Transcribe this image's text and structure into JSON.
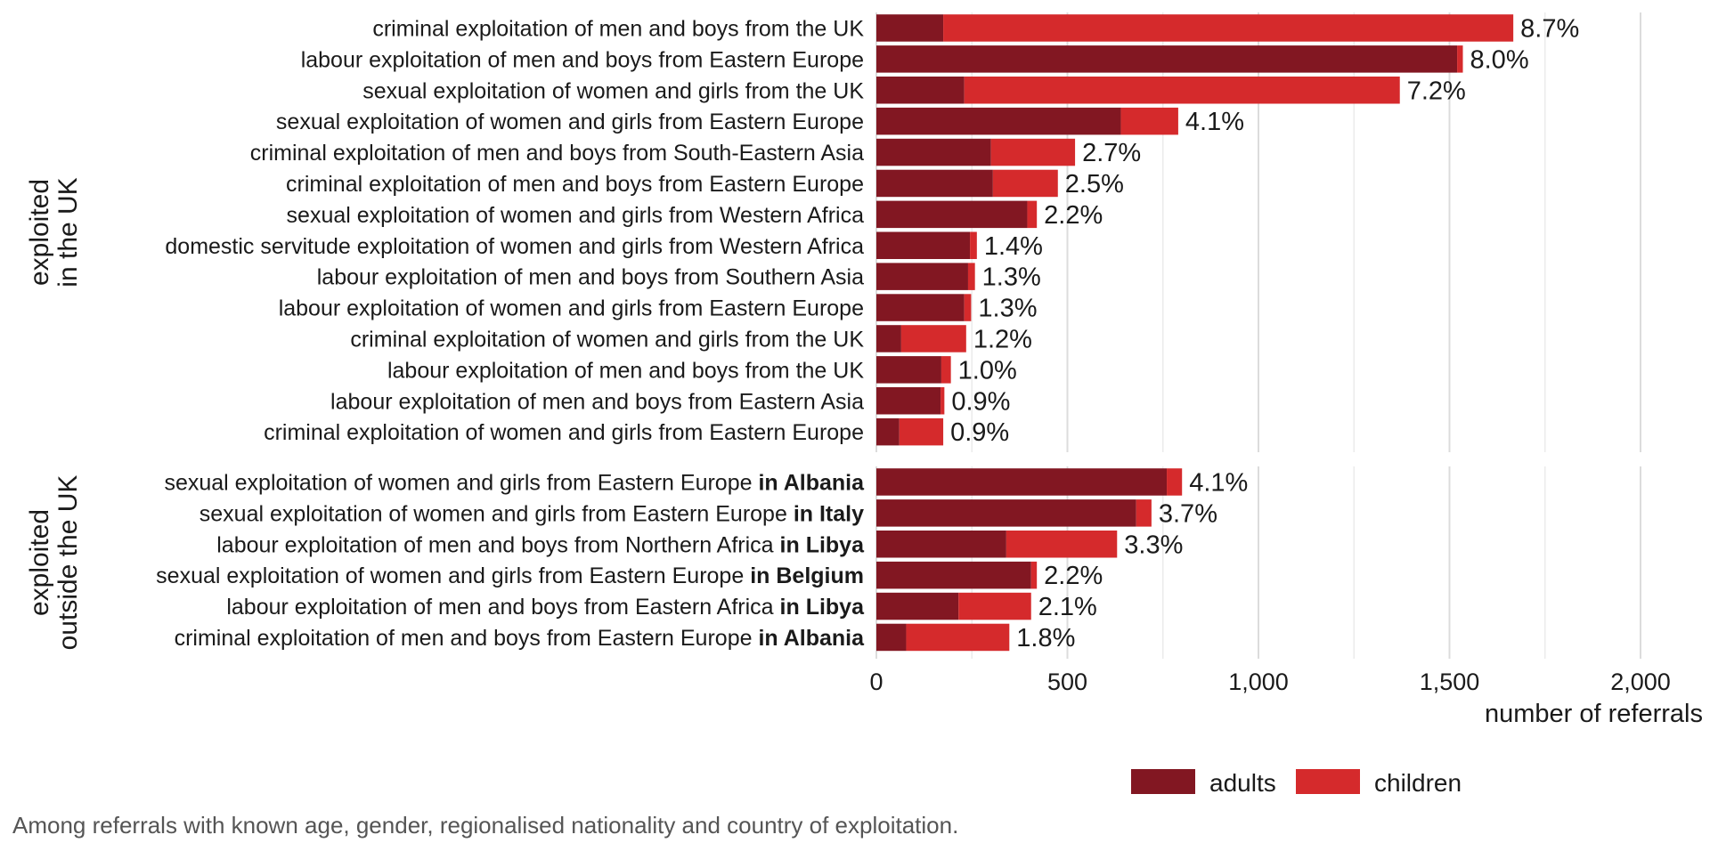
{
  "chart_data": {
    "type": "bar",
    "orientation": "horizontal",
    "stacked": true,
    "xlabel": "number of referrals",
    "xlim": [
      0,
      2000
    ],
    "xticks": [
      0,
      500,
      1000,
      1500,
      2000
    ],
    "xtick_labels": [
      "0",
      "500",
      "1,000",
      "1,500",
      "2,000"
    ],
    "grid": true,
    "legend_position": "bottom-right",
    "series": [
      {
        "name": "adults",
        "color": "#821722"
      },
      {
        "name": "children",
        "color": "#d52a2c"
      }
    ],
    "panels": [
      {
        "title": "exploited\nin the UK",
        "rows": [
          {
            "label": "criminal exploitation of men and boys from the UK",
            "bold": "",
            "adults": 175,
            "children": 1492,
            "pct": "8.7%"
          },
          {
            "label": "labour exploitation of men and boys from Eastern Europe",
            "bold": "",
            "adults": 1520,
            "children": 15,
            "pct": "8.0%"
          },
          {
            "label": "sexual exploitation of women and girls from the UK",
            "bold": "",
            "adults": 230,
            "children": 1140,
            "pct": "7.2%"
          },
          {
            "label": "sexual exploitation of women and girls from Eastern Europe",
            "bold": "",
            "adults": 640,
            "children": 150,
            "pct": "4.1%"
          },
          {
            "label": "criminal exploitation of men and boys from South-Eastern Asia",
            "bold": "",
            "adults": 300,
            "children": 220,
            "pct": "2.7%"
          },
          {
            "label": "criminal exploitation of men and boys from Eastern Europe",
            "bold": "",
            "adults": 305,
            "children": 170,
            "pct": "2.5%"
          },
          {
            "label": "sexual exploitation of women and girls from Western Africa",
            "bold": "",
            "adults": 395,
            "children": 25,
            "pct": "2.2%"
          },
          {
            "label": "domestic servitude exploitation of women and girls from Western Africa",
            "bold": "",
            "adults": 245,
            "children": 18,
            "pct": "1.4%"
          },
          {
            "label": "labour exploitation of men and boys from Southern Asia",
            "bold": "",
            "adults": 240,
            "children": 18,
            "pct": "1.3%"
          },
          {
            "label": "labour exploitation of women and girls from Eastern Europe",
            "bold": "",
            "adults": 230,
            "children": 18,
            "pct": "1.3%"
          },
          {
            "label": "criminal exploitation of women and girls from the UK",
            "bold": "",
            "adults": 65,
            "children": 170,
            "pct": "1.2%"
          },
          {
            "label": "labour exploitation of men and boys from the UK",
            "bold": "",
            "adults": 170,
            "children": 25,
            "pct": "1.0%"
          },
          {
            "label": "labour exploitation of men and boys from Eastern Asia",
            "bold": "",
            "adults": 168,
            "children": 10,
            "pct": "0.9%"
          },
          {
            "label": "criminal exploitation of women and girls from Eastern Europe",
            "bold": "",
            "adults": 60,
            "children": 115,
            "pct": "0.9%"
          }
        ]
      },
      {
        "title": "exploited\noutside the UK",
        "rows": [
          {
            "label": "sexual exploitation of women and girls from Eastern Europe",
            "bold": "in Albania",
            "adults": 760,
            "children": 40,
            "pct": "4.1%"
          },
          {
            "label": "sexual exploitation of women and girls from Eastern Europe",
            "bold": "in Italy",
            "adults": 680,
            "children": 40,
            "pct": "3.7%"
          },
          {
            "label": "labour exploitation of men and boys from Northern Africa",
            "bold": "in Libya",
            "adults": 340,
            "children": 290,
            "pct": "3.3%"
          },
          {
            "label": "sexual exploitation of women and girls from Eastern Europe",
            "bold": "in Belgium",
            "adults": 405,
            "children": 15,
            "pct": "2.2%"
          },
          {
            "label": "labour exploitation of men and boys from Eastern Africa",
            "bold": "in Libya",
            "adults": 215,
            "children": 190,
            "pct": "2.1%"
          },
          {
            "label": "criminal exploitation of men and boys from Eastern Europe",
            "bold": "in Albania",
            "adults": 78,
            "children": 270,
            "pct": "1.8%"
          }
        ]
      }
    ],
    "caption": "Among referrals with known age, gender, regionalised nationality and country of exploitation."
  }
}
